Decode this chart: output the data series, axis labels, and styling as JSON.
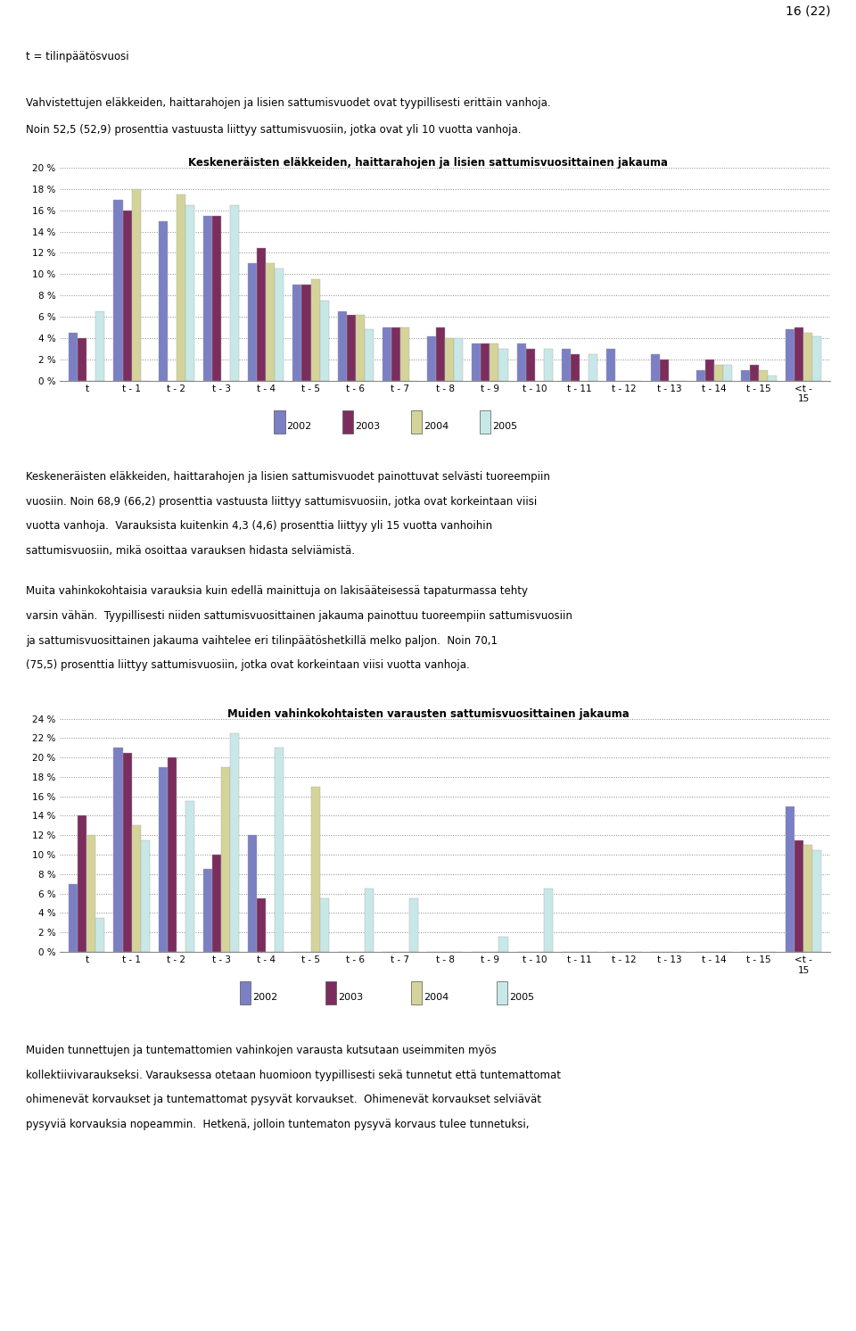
{
  "page_number": "16 (22)",
  "top_line1": "t = tilinpäätösvuosi",
  "top_line2": "Vahvistettujen eläkkeiden, haittarahojen ja lisien sattumisvuodet ovat tyypillisesti erittäin vanhoja.",
  "top_line3": "Noin 52,5 (52,9) prosenttia vastuusta liittyy sattumisvuosiin, jotka ovat yli 10 vuotta vanhoja.",
  "chart1_title": "Keskeneräisten eläkkeiden, haittarahojen ja lisien sattumisvuosittainen jakauma",
  "chart1_categories": [
    "t",
    "t - 1",
    "t - 2",
    "t - 3",
    "t - 4",
    "t - 5",
    "t - 6",
    "t - 7",
    "t - 8",
    "t - 9",
    "t - 10",
    "t - 11",
    "t - 12",
    "t - 13",
    "t - 14",
    "t - 15",
    "<t -\n15"
  ],
  "chart1_data_2002": [
    4.5,
    17.0,
    15.0,
    15.5,
    11.0,
    9.0,
    6.5,
    5.0,
    4.2,
    3.5,
    3.5,
    3.0,
    3.0,
    2.5,
    1.0,
    1.0,
    4.8
  ],
  "chart1_data_2003": [
    4.0,
    16.0,
    0.0,
    15.5,
    12.5,
    9.0,
    6.2,
    5.0,
    5.0,
    3.5,
    3.0,
    2.5,
    0.0,
    2.0,
    2.0,
    1.5,
    5.0
  ],
  "chart1_data_2004": [
    0.0,
    18.0,
    17.5,
    0.0,
    11.0,
    9.5,
    6.2,
    5.0,
    4.0,
    3.5,
    0.0,
    0.0,
    0.0,
    0.0,
    1.5,
    1.0,
    4.5
  ],
  "chart1_data_2005": [
    6.5,
    0.0,
    16.5,
    16.5,
    10.5,
    7.5,
    4.8,
    0.0,
    4.0,
    3.0,
    3.0,
    2.5,
    0.0,
    0.0,
    1.5,
    0.5,
    4.2
  ],
  "chart1_ylim": [
    0,
    20
  ],
  "chart1_yticks": [
    0,
    2,
    4,
    6,
    8,
    10,
    12,
    14,
    16,
    18,
    20
  ],
  "chart2_title": "Muiden vahinkokohtaisten varausten sattumisvuosittainen jakauma",
  "chart2_categories": [
    "t",
    "t - 1",
    "t - 2",
    "t - 3",
    "t - 4",
    "t - 5",
    "t - 6",
    "t - 7",
    "t - 8",
    "t - 9",
    "t - 10",
    "t - 11",
    "t - 12",
    "t - 13",
    "t - 14",
    "t - 15",
    "<t -\n15"
  ],
  "chart2_data_2002": [
    7.0,
    21.0,
    19.0,
    8.5,
    12.0,
    0.0,
    0.0,
    0.0,
    0.0,
    0.0,
    0.0,
    0.0,
    0.0,
    0.0,
    0.0,
    0.0,
    15.0
  ],
  "chart2_data_2003": [
    14.0,
    20.5,
    20.0,
    10.0,
    5.5,
    0.0,
    0.0,
    0.0,
    0.0,
    0.0,
    0.0,
    0.0,
    0.0,
    0.0,
    0.0,
    0.0,
    11.5
  ],
  "chart2_data_2004": [
    12.0,
    13.0,
    0.0,
    19.0,
    0.0,
    17.0,
    0.0,
    0.0,
    0.0,
    0.0,
    0.0,
    0.0,
    0.0,
    0.0,
    0.0,
    0.0,
    11.0
  ],
  "chart2_data_2005": [
    3.5,
    11.5,
    15.5,
    22.5,
    21.0,
    5.5,
    6.5,
    5.5,
    0.0,
    1.5,
    6.5,
    0.0,
    0.0,
    0.0,
    0.0,
    0.0,
    10.5
  ],
  "chart2_ylim": [
    0,
    24
  ],
  "chart2_yticks": [
    0,
    2,
    4,
    6,
    8,
    10,
    12,
    14,
    16,
    18,
    20,
    22,
    24
  ],
  "colors_2002": "#7b7fc4",
  "colors_2003": "#7b2d5e",
  "colors_2004": "#d4d49a",
  "colors_2005": "#c8e8e8",
  "legend_years": [
    "2002",
    "2003",
    "2004",
    "2005"
  ],
  "middle_para1_lines": [
    "Keskeneräisten eläkkeiden, haittarahojen ja lisien sattumisvuodet painottuvat selvästi tuoreempiin",
    "vuosiin. Noin 68,9 (66,2) prosenttia vastuusta liittyy sattumisvuosiin, jotka ovat korkeintaan viisi",
    "vuotta vanhoja.  Varauksista kuitenkin 4,3 (4,6) prosenttia liittyy yli 15 vuotta vanhoihin",
    "sattumisvuosiin, mikä osoittaa varauksen hidasta selviämistä."
  ],
  "middle_para2_lines": [
    "Muita vahinkokohtaisia varauksia kuin edellä mainittuja on lakisääteisessä tapaturmassa tehty",
    "varsin vähän.  Tyypillisesti niiden sattumisvuosittainen jakauma painottuu tuoreempiin sattumisvuosiin",
    "ja sattumisvuosittainen jakauma vaihtelee eri tilinpäätöshetkillä melko paljon.  Noin 70,1",
    "(75,5) prosenttia liittyy sattumisvuosiin, jotka ovat korkeintaan viisi vuotta vanhoja."
  ],
  "bottom_para_lines": [
    "Muiden tunnettujen ja tuntemattomien vahinkojen varausta kutsutaan useimmiten myös",
    "kollektiivivaraukseksi. Varauksessa otetaan huomioon tyypillisesti sekä tunnetut että tuntemattomat",
    "ohimenevät korvaukset ja tuntemattomat pysyvät korvaukset.  Ohimenevät korvaukset selviävät",
    "pysyviä korvauksia nopeammin.  Hetkenä, jolloin tuntematon pysyvä korvaus tulee tunnetuksi,"
  ]
}
